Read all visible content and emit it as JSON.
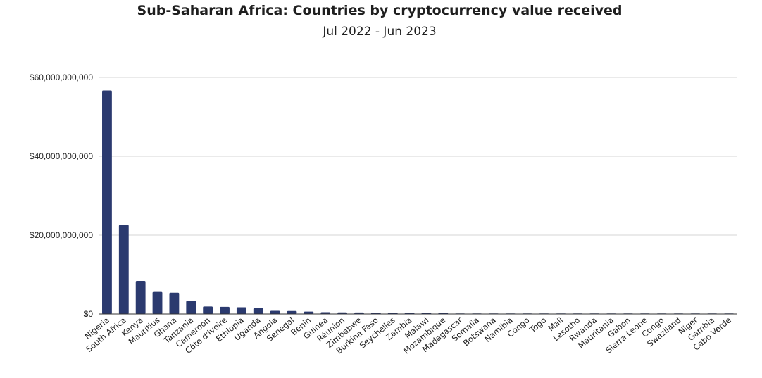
{
  "chart_data": {
    "type": "bar",
    "title": "Sub-Saharan Africa: Countries by cryptocurrency value received",
    "subtitle": "Jul 2022 - Jun 2023",
    "xlabel": "",
    "ylabel": "",
    "ylim": [
      0,
      60000000000
    ],
    "yticks": [
      0,
      20000000000,
      40000000000,
      60000000000
    ],
    "ytick_labels": [
      "$0",
      "$20,000,000,000",
      "$40,000,000,000",
      "$60,000,000,000"
    ],
    "grid": true,
    "legend": "none",
    "bar_color": "#2b3a6f",
    "categories": [
      "Nigeria",
      "South Africa",
      "Kenya",
      "Mauritius",
      "Ghana",
      "Tanzania",
      "Cameroon",
      "Côte d'Ivoire",
      "Ethiopia",
      "Uganda",
      "Angola",
      "Senegal",
      "Benin",
      "Guinea",
      "Réunion",
      "Zimbabwe",
      "Burkina Faso",
      "Seychelles",
      "Zambia",
      "Malawi",
      "Mozambique",
      "Madagascar",
      "Somalia",
      "Botswana",
      "Namibia",
      "Congo",
      "Togo",
      "Mali",
      "Lesotho",
      "Rwanda",
      "Mauritania",
      "Gabon",
      "Sierra Leone",
      "Congo",
      "Swaziland",
      "Niger",
      "Gambia",
      "Cabo Verde"
    ],
    "values": [
      56700000000,
      22600000000,
      8400000000,
      5600000000,
      5400000000,
      3300000000,
      1900000000,
      1800000000,
      1700000000,
      1500000000,
      800000000,
      750000000,
      600000000,
      450000000,
      400000000,
      380000000,
      300000000,
      280000000,
      260000000,
      240000000,
      220000000,
      90000000,
      80000000,
      70000000,
      60000000,
      55000000,
      50000000,
      45000000,
      40000000,
      35000000,
      30000000,
      25000000,
      20000000,
      18000000,
      15000000,
      12000000,
      10000000,
      8000000
    ]
  }
}
